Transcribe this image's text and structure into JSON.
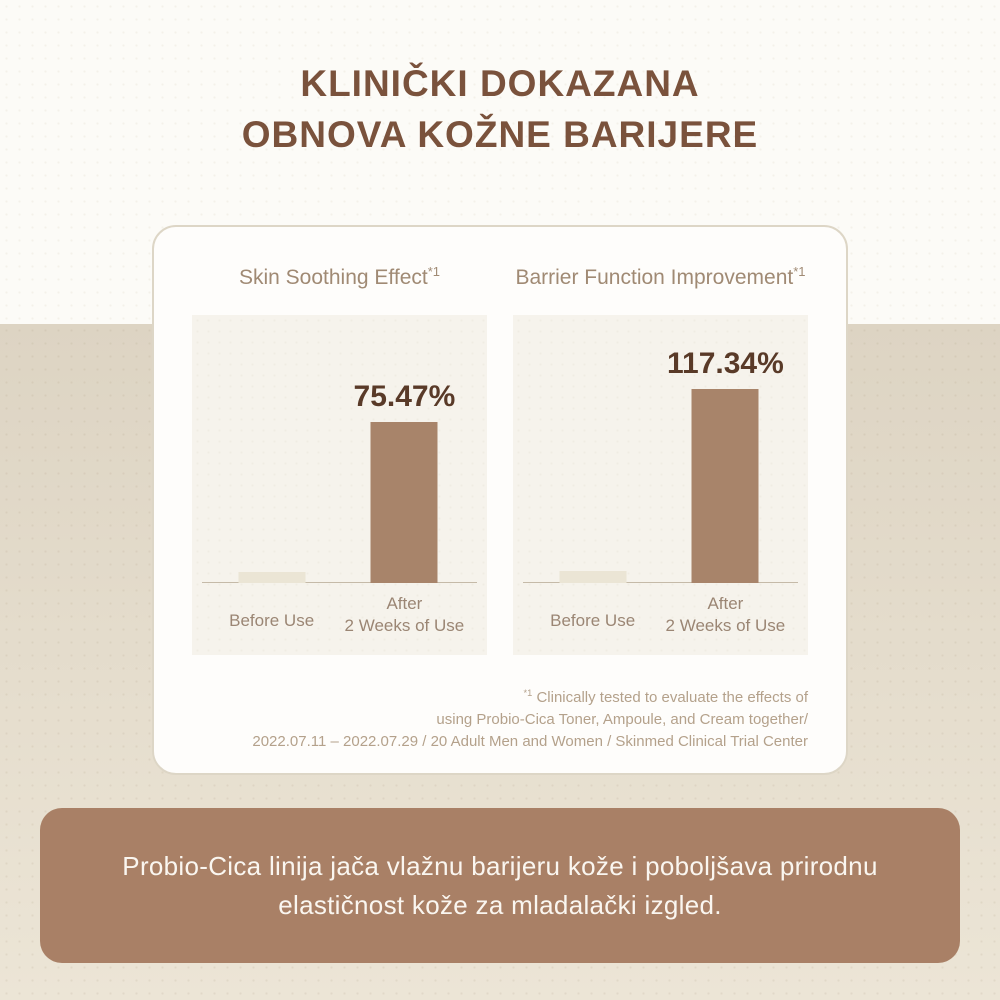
{
  "header": {
    "title_line1": "KLINIČKI DOKAZANA",
    "title_line2": "OBNOVA KOŽNE BARIJERE"
  },
  "chart_data": [
    {
      "type": "bar",
      "title": "Skin Soothing Effect",
      "title_sup": "*1",
      "categories": [
        "Before Use",
        "After 2 Weeks of Use"
      ],
      "tick_lines": {
        "before": "Before Use",
        "after_line1": "After",
        "after_line2": "2 Weeks of Use"
      },
      "values": [
        5,
        75.47
      ],
      "value_labels": [
        "",
        "75.47%"
      ],
      "ylim": [
        0,
        126
      ],
      "bar_colors": [
        "#ebe5d5",
        "#a8846a"
      ],
      "grid": false,
      "legend": "none"
    },
    {
      "type": "bar",
      "title": "Barrier Function Improvement",
      "title_sup": "*1",
      "categories": [
        "Before Use",
        "After 2 Weeks of Use"
      ],
      "tick_lines": {
        "before": "Before Use",
        "after_line1": "After",
        "after_line2": "2 Weeks of Use"
      },
      "values": [
        7,
        117.34
      ],
      "value_labels": [
        "",
        "117.34%"
      ],
      "ylim": [
        0,
        162
      ],
      "bar_colors": [
        "#ebe5d5",
        "#a8846a"
      ],
      "grid": false,
      "legend": "none"
    }
  ],
  "footnote": {
    "sup": "*1",
    "lines": [
      " Clinically tested to evaluate the effects of",
      "using Probio-Cica Toner, Ampoule, and Cream together/",
      "2022.07.11 – 2022.07.29 / 20 Adult Men and Women / Skinmed Clinical Trial Center"
    ]
  },
  "banner": {
    "line1": "Probio-Cica linija jača vlažnu barijeru kože i poboljšava prirodnu",
    "line2": "elastičnost kože za mladalački izgled."
  },
  "colors": {
    "title_brown": "#7a523c",
    "top_background": "#fcfbf7",
    "band_background_top": "#ddd4c3",
    "band_background_bottom": "#ece5d6",
    "card_background": "#fefdfb",
    "card_border": "#ddd6c6",
    "panel_background": "#f6f3ec",
    "bar_brown": "#a8846a",
    "bar_light": "#ebe5d5",
    "axis_line": "#c5baa8",
    "tick_label": "#9b8674",
    "value_label": "#593a28",
    "chart_title": "#a08a74",
    "footnote_text": "#b4a18b",
    "banner_background": "#a98066",
    "banner_text": "#faf6f0"
  }
}
